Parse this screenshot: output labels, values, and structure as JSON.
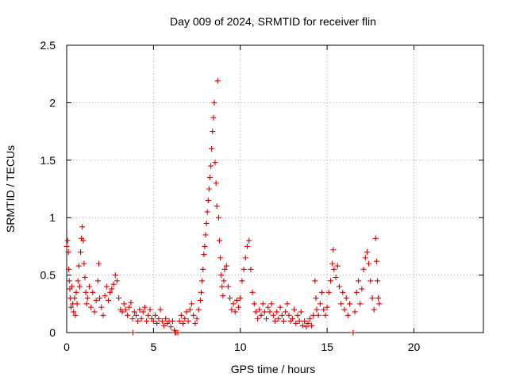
{
  "chart_data": {
    "type": "scatter",
    "title": "Day 009 of 2024, SRMTID for receiver flin",
    "xlabel": "GPS time / hours",
    "ylabel": "SRMTID / TECUs",
    "xlim": [
      0,
      24
    ],
    "ylim": [
      0,
      2.5
    ],
    "xticks": [
      0,
      5,
      10,
      15,
      20
    ],
    "xtick_labels": [
      "0",
      "5",
      "10",
      "15",
      "20"
    ],
    "yticks": [
      0,
      0.5,
      1,
      1.5,
      2,
      2.5
    ],
    "ytick_labels": [
      "0",
      "0.5",
      "1",
      "1.5",
      "2",
      "2.5"
    ],
    "grid": true,
    "marker": "+",
    "color": "#dd0000",
    "series": [
      {
        "name": "SRMTID",
        "points": [
          [
            0.0,
            0.75
          ],
          [
            0.05,
            0.8
          ],
          [
            0.1,
            0.7
          ],
          [
            0.12,
            0.55
          ],
          [
            0.15,
            0.45
          ],
          [
            0.18,
            0.38
          ],
          [
            0.2,
            0.3
          ],
          [
            0.25,
            0.22
          ],
          [
            0.3,
            0.4
          ],
          [
            0.35,
            0.25
          ],
          [
            0.4,
            0.18
          ],
          [
            0.45,
            0.3
          ],
          [
            0.5,
            0.15
          ],
          [
            0.55,
            0.35
          ],
          [
            0.6,
            0.25
          ],
          [
            0.65,
            0.45
          ],
          [
            0.7,
            0.58
          ],
          [
            0.75,
            0.4
          ],
          [
            0.8,
            0.7
          ],
          [
            0.85,
            0.82
          ],
          [
            0.9,
            0.92
          ],
          [
            0.95,
            0.8
          ],
          [
            1.0,
            0.6
          ],
          [
            1.05,
            0.48
          ],
          [
            1.1,
            0.35
          ],
          [
            1.15,
            0.25
          ],
          [
            1.2,
            0.3
          ],
          [
            1.3,
            0.4
          ],
          [
            1.4,
            0.22
          ],
          [
            1.5,
            0.35
          ],
          [
            1.6,
            0.18
          ],
          [
            1.7,
            0.28
          ],
          [
            1.8,
            0.45
          ],
          [
            1.85,
            0.6
          ],
          [
            1.9,
            0.3
          ],
          [
            2.0,
            0.22
          ],
          [
            2.1,
            0.15
          ],
          [
            2.2,
            0.32
          ],
          [
            2.3,
            0.4
          ],
          [
            2.4,
            0.28
          ],
          [
            2.5,
            0.35
          ],
          [
            2.6,
            0.38
          ],
          [
            2.7,
            0.42
          ],
          [
            2.8,
            0.5
          ],
          [
            2.9,
            0.45
          ],
          [
            3.0,
            0.3
          ],
          [
            3.1,
            0.2
          ],
          [
            3.2,
            0.18
          ],
          [
            3.3,
            0.25
          ],
          [
            3.4,
            0.2
          ],
          [
            3.5,
            0.15
          ],
          [
            3.6,
            0.22
          ],
          [
            3.7,
            0.26
          ],
          [
            3.8,
            0.12
          ],
          [
            3.82,
            0.0
          ],
          [
            3.9,
            0.18
          ],
          [
            4.0,
            0.15
          ],
          [
            4.1,
            0.1
          ],
          [
            4.2,
            0.2
          ],
          [
            4.3,
            0.12
          ],
          [
            4.4,
            0.18
          ],
          [
            4.5,
            0.22
          ],
          [
            4.6,
            0.1
          ],
          [
            4.7,
            0.15
          ],
          [
            4.8,
            0.2
          ],
          [
            4.9,
            0.12
          ],
          [
            5.0,
            0.1
          ],
          [
            5.1,
            0.15
          ],
          [
            5.2,
            0.08
          ],
          [
            5.3,
            0.12
          ],
          [
            5.4,
            0.2
          ],
          [
            5.5,
            0.1
          ],
          [
            5.6,
            0.06
          ],
          [
            5.7,
            0.12
          ],
          [
            5.8,
            0.08
          ],
          [
            5.9,
            0.1
          ],
          [
            6.0,
            0.05
          ],
          [
            6.1,
            0.1
          ],
          [
            6.2,
            0.02
          ],
          [
            6.25,
            0.0
          ],
          [
            6.3,
            0.0
          ],
          [
            6.4,
            0.0
          ],
          [
            6.5,
            0.1
          ],
          [
            6.6,
            0.15
          ],
          [
            6.7,
            0.08
          ],
          [
            6.8,
            0.12
          ],
          [
            6.9,
            0.18
          ],
          [
            7.0,
            0.1
          ],
          [
            7.1,
            0.2
          ],
          [
            7.2,
            0.25
          ],
          [
            7.3,
            0.15
          ],
          [
            7.4,
            0.08
          ],
          [
            7.5,
            0.12
          ],
          [
            7.6,
            0.2
          ],
          [
            7.7,
            0.28
          ],
          [
            7.75,
            0.35
          ],
          [
            7.8,
            0.45
          ],
          [
            7.85,
            0.55
          ],
          [
            7.9,
            0.68
          ],
          [
            7.95,
            0.75
          ],
          [
            8.0,
            0.85
          ],
          [
            8.05,
            0.95
          ],
          [
            8.1,
            1.05
          ],
          [
            8.15,
            1.15
          ],
          [
            8.2,
            1.25
          ],
          [
            8.25,
            1.35
          ],
          [
            8.3,
            1.45
          ],
          [
            8.35,
            1.6
          ],
          [
            8.4,
            1.75
          ],
          [
            8.45,
            1.87
          ],
          [
            8.5,
            2.0
          ],
          [
            8.55,
            1.48
          ],
          [
            8.6,
            1.3
          ],
          [
            8.65,
            1.1
          ],
          [
            8.7,
            2.19
          ],
          [
            8.75,
            1.0
          ],
          [
            8.8,
            0.8
          ],
          [
            8.85,
            0.65
          ],
          [
            8.9,
            0.5
          ],
          [
            8.95,
            0.4
          ],
          [
            9.0,
            0.32
          ],
          [
            9.05,
            0.45
          ],
          [
            9.1,
            0.55
          ],
          [
            9.2,
            0.58
          ],
          [
            9.3,
            0.4
          ],
          [
            9.4,
            0.3
          ],
          [
            9.5,
            0.2
          ],
          [
            9.6,
            0.25
          ],
          [
            9.7,
            0.18
          ],
          [
            9.8,
            0.28
          ],
          [
            9.9,
            0.22
          ],
          [
            10.0,
            0.3
          ],
          [
            10.1,
            0.45
          ],
          [
            10.2,
            0.55
          ],
          [
            10.3,
            0.65
          ],
          [
            10.4,
            0.75
          ],
          [
            10.5,
            0.8
          ],
          [
            10.6,
            0.55
          ],
          [
            10.7,
            0.35
          ],
          [
            10.8,
            0.25
          ],
          [
            10.9,
            0.18
          ],
          [
            11.0,
            0.12
          ],
          [
            11.1,
            0.2
          ],
          [
            11.2,
            0.15
          ],
          [
            11.3,
            0.25
          ],
          [
            11.4,
            0.18
          ],
          [
            11.5,
            0.12
          ],
          [
            11.6,
            0.22
          ],
          [
            11.7,
            0.18
          ],
          [
            11.8,
            0.25
          ],
          [
            11.9,
            0.15
          ],
          [
            12.0,
            0.1
          ],
          [
            12.1,
            0.18
          ],
          [
            12.2,
            0.12
          ],
          [
            12.3,
            0.22
          ],
          [
            12.4,
            0.15
          ],
          [
            12.5,
            0.1
          ],
          [
            12.6,
            0.18
          ],
          [
            12.7,
            0.25
          ],
          [
            12.8,
            0.15
          ],
          [
            12.9,
            0.1
          ],
          [
            13.0,
            0.12
          ],
          [
            13.1,
            0.2
          ],
          [
            13.2,
            0.08
          ],
          [
            13.3,
            0.15
          ],
          [
            13.4,
            0.1
          ],
          [
            13.5,
            0.18
          ],
          [
            13.6,
            0.06
          ],
          [
            13.7,
            0.1
          ],
          [
            13.8,
            0.05
          ],
          [
            13.9,
            0.08
          ],
          [
            14.0,
            0.12
          ],
          [
            14.1,
            0.06
          ],
          [
            14.2,
            0.15
          ],
          [
            14.3,
            0.45
          ],
          [
            14.35,
            0.3
          ],
          [
            14.4,
            0.2
          ],
          [
            14.5,
            0.15
          ],
          [
            14.6,
            0.25
          ],
          [
            14.7,
            0.35
          ],
          [
            14.8,
            0.2
          ],
          [
            14.9,
            0.15
          ],
          [
            15.0,
            0.22
          ],
          [
            15.1,
            0.35
          ],
          [
            15.2,
            0.45
          ],
          [
            15.3,
            0.6
          ],
          [
            15.35,
            0.72
          ],
          [
            15.4,
            0.55
          ],
          [
            15.5,
            0.48
          ],
          [
            15.6,
            0.58
          ],
          [
            15.7,
            0.4
          ],
          [
            15.8,
            0.25
          ],
          [
            15.9,
            0.35
          ],
          [
            16.0,
            0.2
          ],
          [
            16.1,
            0.3
          ],
          [
            16.2,
            0.15
          ],
          [
            16.3,
            0.25
          ],
          [
            16.5,
            0.0
          ],
          [
            16.6,
            0.18
          ],
          [
            16.7,
            0.35
          ],
          [
            16.8,
            0.45
          ],
          [
            16.9,
            0.25
          ],
          [
            17.0,
            0.38
          ],
          [
            17.1,
            0.55
          ],
          [
            17.2,
            0.65
          ],
          [
            17.3,
            0.7
          ],
          [
            17.4,
            0.6
          ],
          [
            17.5,
            0.45
          ],
          [
            17.6,
            0.3
          ],
          [
            17.7,
            0.2
          ],
          [
            17.8,
            0.82
          ],
          [
            17.85,
            0.62
          ],
          [
            17.9,
            0.45
          ],
          [
            17.95,
            0.3
          ],
          [
            18.0,
            0.25
          ]
        ]
      }
    ]
  }
}
